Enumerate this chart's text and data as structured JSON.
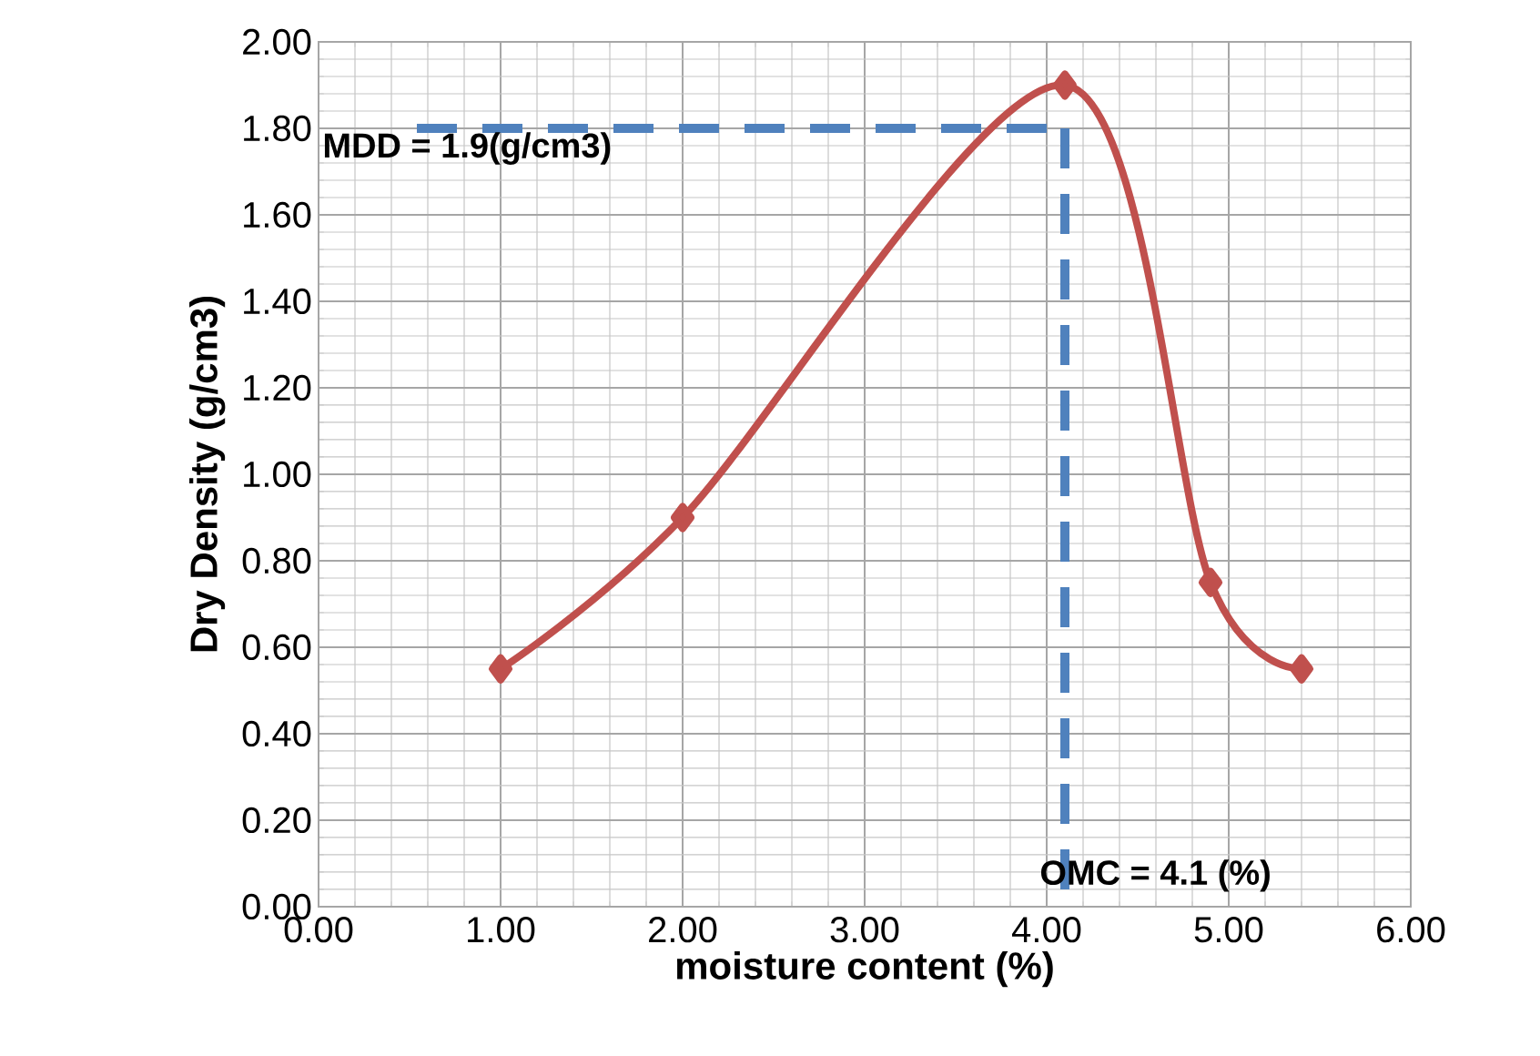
{
  "chart_data": {
    "type": "line",
    "xlabel": "moisture content (%)",
    "ylabel": "Dry Density (g/cm3)",
    "x": [
      1.0,
      2.0,
      4.1,
      4.9,
      5.4
    ],
    "series": [
      {
        "color": "#c0504d",
        "values": [
          0.55,
          0.9,
          1.9,
          0.75,
          0.55
        ]
      }
    ],
    "xlim": [
      0,
      6
    ],
    "ylim": [
      0,
      2
    ],
    "xticks": [
      {
        "value": 0,
        "label": "0.00"
      },
      {
        "value": 1,
        "label": "1.00"
      },
      {
        "value": 2,
        "label": "2.00"
      },
      {
        "value": 3,
        "label": "3.00"
      },
      {
        "value": 4,
        "label": "4.00"
      },
      {
        "value": 5,
        "label": "5.00"
      },
      {
        "value": 6,
        "label": "6.00"
      }
    ],
    "yticks": [
      {
        "value": 0,
        "label": "0.00"
      },
      {
        "value": 0.2,
        "label": "0.20"
      },
      {
        "value": 0.4,
        "label": "0.40"
      },
      {
        "value": 0.6,
        "label": "0.60"
      },
      {
        "value": 0.8,
        "label": "0.80"
      },
      {
        "value": 1.0,
        "label": "1.00"
      },
      {
        "value": 1.2,
        "label": "1.20"
      },
      {
        "value": 1.4,
        "label": "1.40"
      },
      {
        "value": 1.6,
        "label": "1.60"
      },
      {
        "value": 1.8,
        "label": "1.80"
      },
      {
        "value": 2.0,
        "label": "2.00"
      }
    ],
    "ref_lines": [
      {
        "axis": "y",
        "value": 1.8,
        "color": "#4f81bd",
        "line_style": "dashed"
      },
      {
        "axis": "x",
        "value": 4.1,
        "color": "#4f81bd",
        "line_style": "dashed"
      }
    ],
    "annotations": [
      "MDD = 1.9(g/cm3)",
      "OMC = 4.1 (%)"
    ],
    "grid": true,
    "marker": "diamond",
    "line_style": "solid"
  }
}
